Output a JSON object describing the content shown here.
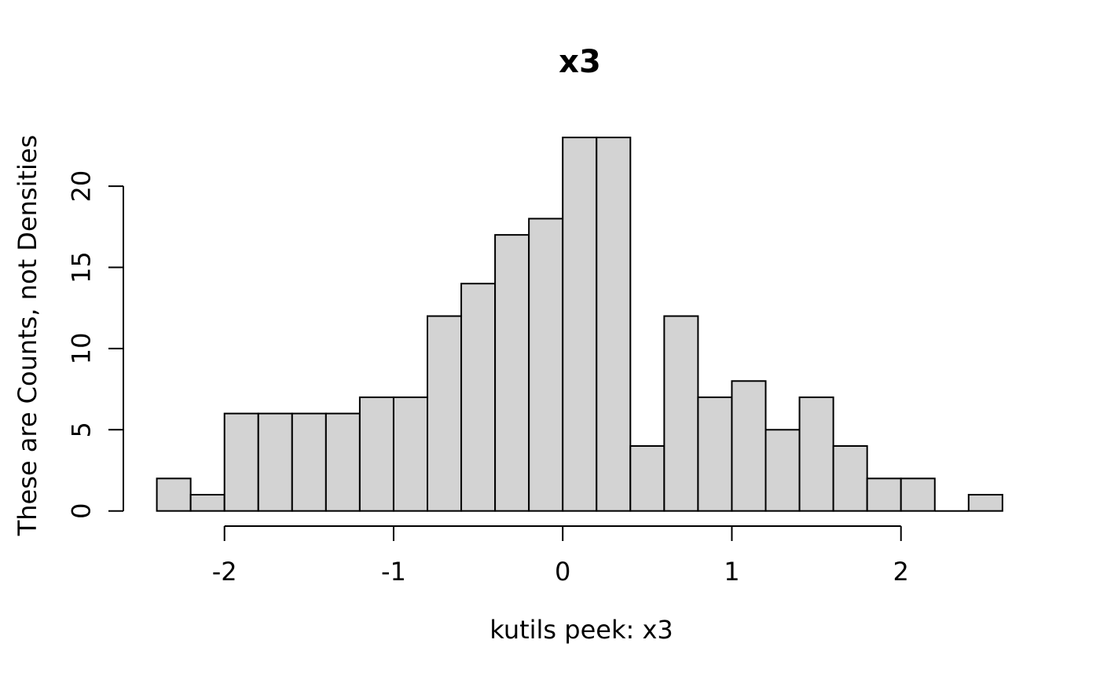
{
  "title": "x3",
  "chart_data": {
    "type": "bar",
    "subtype": "histogram",
    "title": "x3",
    "xlabel": "kutils peek: x3",
    "ylabel": "These are Counts, not Densities",
    "bin_start": -2.4,
    "bin_width": 0.2,
    "counts": [
      2,
      1,
      6,
      6,
      6,
      6,
      7,
      7,
      12,
      14,
      17,
      18,
      23,
      23,
      4,
      12,
      7,
      8,
      5,
      7,
      4,
      2,
      2,
      0,
      1
    ],
    "x_ticks": [
      "-2",
      "-1",
      "0",
      "1",
      "2"
    ],
    "x_tick_values": [
      -2,
      -1,
      0,
      1,
      2
    ],
    "y_ticks": [
      "0",
      "5",
      "10",
      "15",
      "20"
    ],
    "y_tick_values": [
      0,
      5,
      10,
      15,
      20
    ],
    "xlim": [
      -2.4,
      2.6
    ],
    "ylim": [
      0,
      23
    ],
    "grid": false,
    "legend": false,
    "bar_fill": "#d3d3d3",
    "bar_stroke": "#000000",
    "axis_color": "#000000",
    "text_color": "#000000",
    "background": "#ffffff"
  }
}
